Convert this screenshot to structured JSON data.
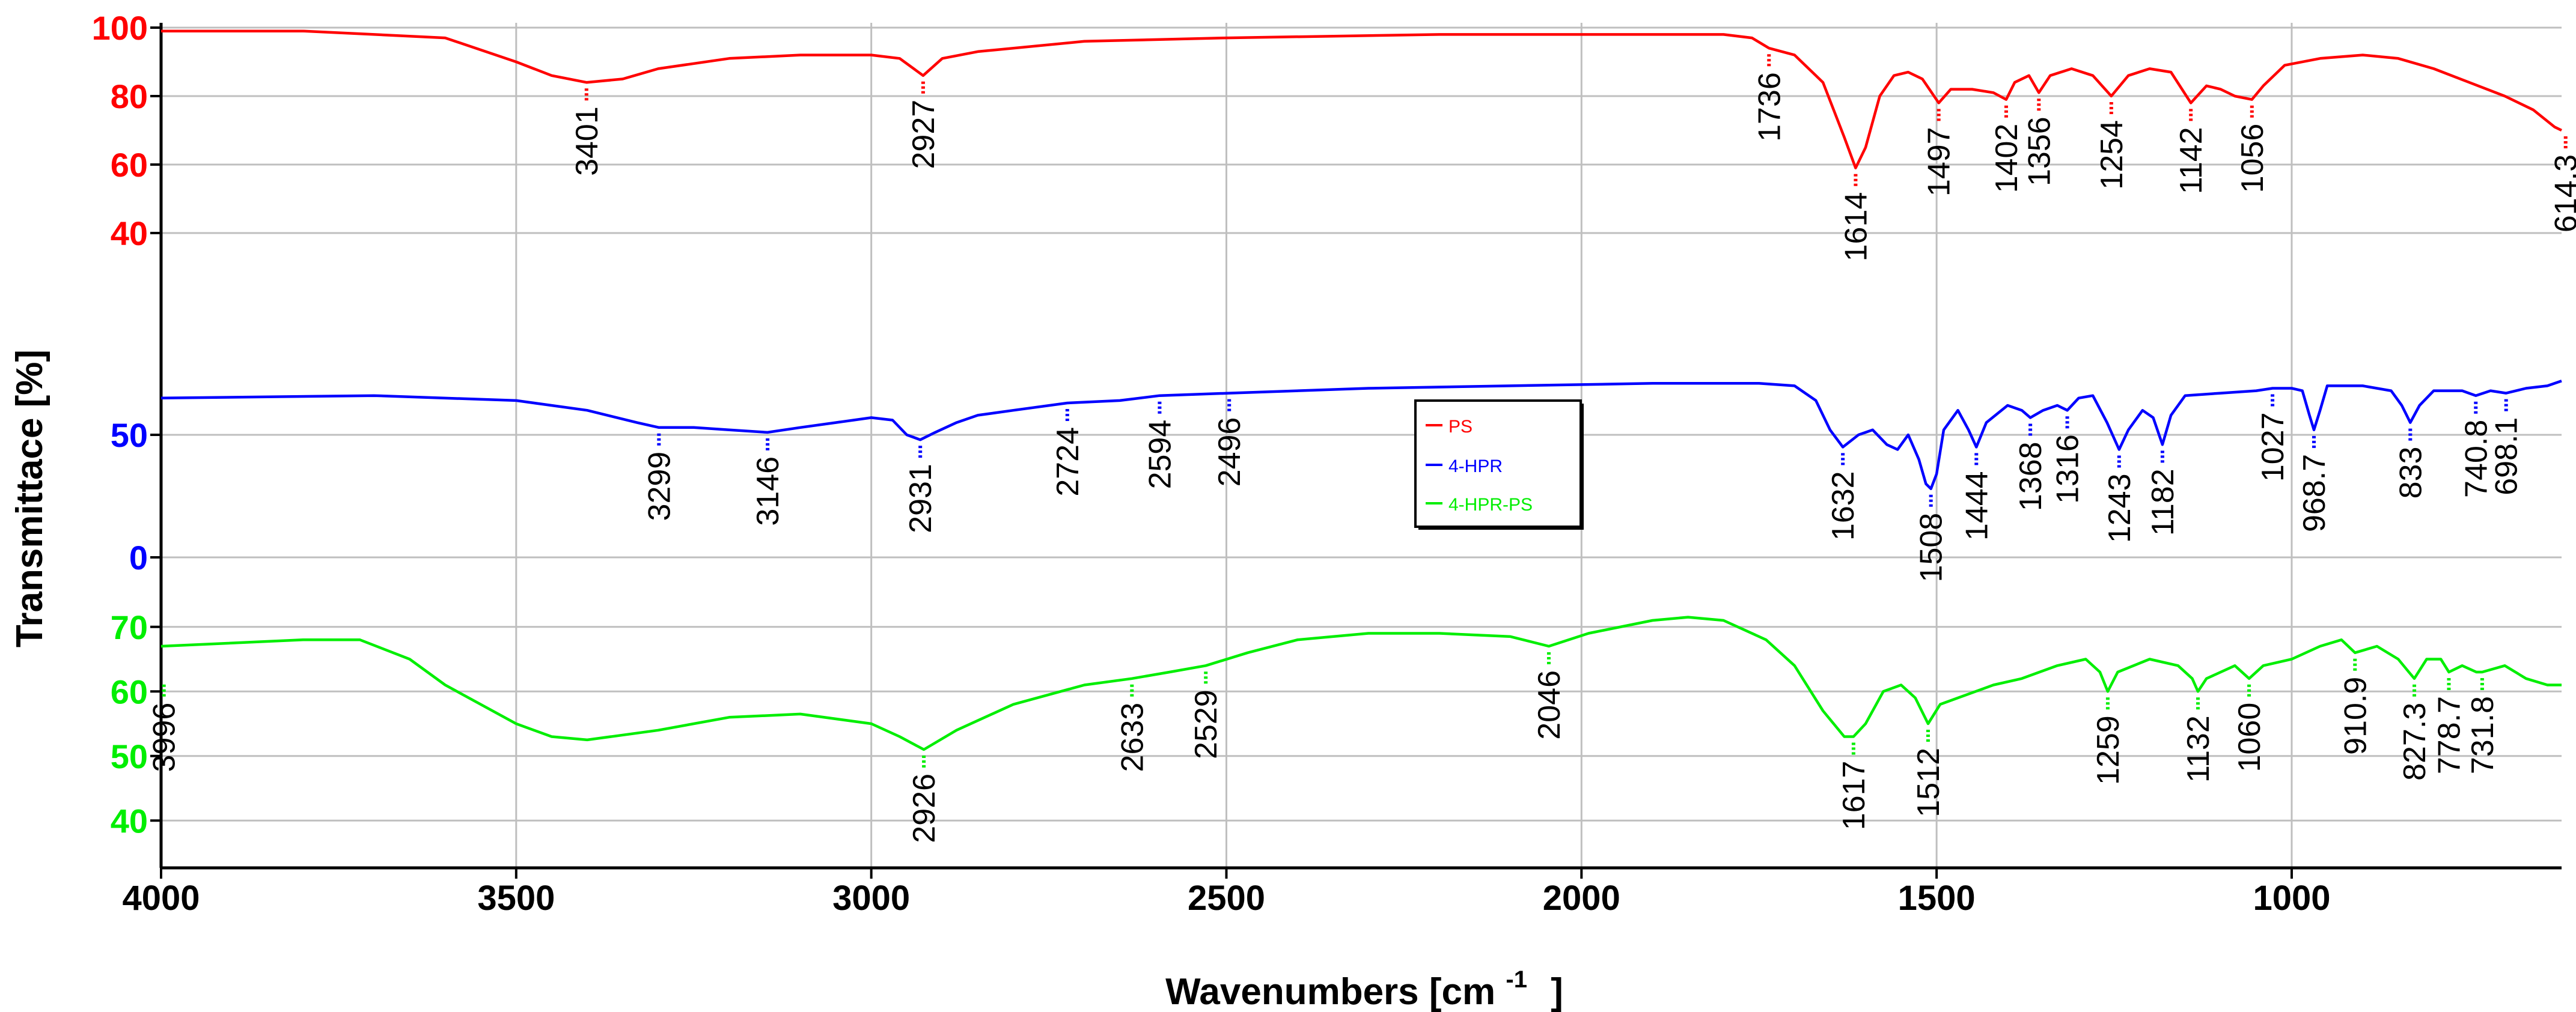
{
  "chart_data": {
    "type": "line",
    "xlabel": "Wavenumbers [cm",
    "xlabel_sup": "-1",
    "xlabel_end": "]",
    "ylabel": "Transmittace [%]",
    "x_reversed": true,
    "xlim": [
      4000,
      620
    ],
    "x_ticks": [
      "4000",
      "3500",
      "3000",
      "2500",
      "2000",
      "1500",
      "1000"
    ],
    "grid": true,
    "legend_position": "center",
    "legend": [
      "PS",
      "4-HPR",
      "4-HPR-PS"
    ],
    "panels": [
      {
        "name": "PS",
        "color": "#ff0000",
        "ylim": [
          30,
          100
        ],
        "y_ticks": [
          "100",
          "80",
          "60",
          "40"
        ],
        "peaks": [
          {
            "x": 3401,
            "label": "3401",
            "y": 84
          },
          {
            "x": 2927,
            "label": "2927",
            "y": 86
          },
          {
            "x": 1736,
            "label": "1736",
            "y": 94
          },
          {
            "x": 1614,
            "label": "1614",
            "y": 59
          },
          {
            "x": 1497,
            "label": "1497",
            "y": 78
          },
          {
            "x": 1402,
            "label": "1402",
            "y": 79
          },
          {
            "x": 1356,
            "label": "1356",
            "y": 81
          },
          {
            "x": 1254,
            "label": "1254",
            "y": 80
          },
          {
            "x": 1142,
            "label": "1142",
            "y": 78
          },
          {
            "x": 1056,
            "label": "1056",
            "y": 79
          },
          {
            "x": 614.3,
            "label": "614.3",
            "y": 70
          }
        ],
        "series": [
          [
            4000,
            99
          ],
          [
            3800,
            99
          ],
          [
            3600,
            97
          ],
          [
            3500,
            90
          ],
          [
            3450,
            86
          ],
          [
            3401,
            84
          ],
          [
            3350,
            85
          ],
          [
            3300,
            88
          ],
          [
            3200,
            91
          ],
          [
            3100,
            92
          ],
          [
            3000,
            92
          ],
          [
            2960,
            91
          ],
          [
            2927,
            86
          ],
          [
            2900,
            91
          ],
          [
            2850,
            93
          ],
          [
            2700,
            96
          ],
          [
            2500,
            97
          ],
          [
            2200,
            98
          ],
          [
            2000,
            98
          ],
          [
            1800,
            98
          ],
          [
            1760,
            97
          ],
          [
            1736,
            94
          ],
          [
            1700,
            92
          ],
          [
            1660,
            84
          ],
          [
            1630,
            68
          ],
          [
            1614,
            59
          ],
          [
            1600,
            65
          ],
          [
            1580,
            80
          ],
          [
            1560,
            86
          ],
          [
            1540,
            87
          ],
          [
            1520,
            85
          ],
          [
            1497,
            78
          ],
          [
            1480,
            82
          ],
          [
            1450,
            82
          ],
          [
            1420,
            81
          ],
          [
            1402,
            79
          ],
          [
            1390,
            84
          ],
          [
            1370,
            86
          ],
          [
            1356,
            81
          ],
          [
            1340,
            86
          ],
          [
            1310,
            88
          ],
          [
            1280,
            86
          ],
          [
            1254,
            80
          ],
          [
            1230,
            86
          ],
          [
            1200,
            88
          ],
          [
            1170,
            87
          ],
          [
            1142,
            78
          ],
          [
            1120,
            83
          ],
          [
            1100,
            82
          ],
          [
            1080,
            80
          ],
          [
            1056,
            79
          ],
          [
            1040,
            83
          ],
          [
            1010,
            89
          ],
          [
            960,
            91
          ],
          [
            900,
            92
          ],
          [
            850,
            91
          ],
          [
            800,
            88
          ],
          [
            750,
            84
          ],
          [
            700,
            80
          ],
          [
            660,
            76
          ],
          [
            630,
            71
          ],
          [
            620,
            70
          ]
        ]
      },
      {
        "name": "4-HPR",
        "color": "#0000ff",
        "ylim": [
          0,
          100
        ],
        "y_ticks": [
          "50",
          "0"
        ],
        "peaks": [
          {
            "x": 3299,
            "label": "3299",
            "y": 53
          },
          {
            "x": 3146,
            "label": "3146",
            "y": 51
          },
          {
            "x": 2931,
            "label": "2931",
            "y": 48
          },
          {
            "x": 2724,
            "label": "2724",
            "y": 63
          },
          {
            "x": 2594,
            "label": "2594",
            "y": 66
          },
          {
            "x": 2496,
            "label": "2496",
            "y": 67
          },
          {
            "x": 1632,
            "label": "1632",
            "y": 45
          },
          {
            "x": 1508,
            "label": "1508",
            "y": 28
          },
          {
            "x": 1444,
            "label": "1444",
            "y": 45
          },
          {
            "x": 1368,
            "label": "1368",
            "y": 57
          },
          {
            "x": 1316,
            "label": "1316",
            "y": 60
          },
          {
            "x": 1243,
            "label": "1243",
            "y": 44
          },
          {
            "x": 1182,
            "label": "1182",
            "y": 46
          },
          {
            "x": 1027,
            "label": "1027",
            "y": 69
          },
          {
            "x": 968.7,
            "label": "968.7",
            "y": 52
          },
          {
            "x": 833,
            "label": "833",
            "y": 55
          },
          {
            "x": 740.8,
            "label": "740.8",
            "y": 66
          },
          {
            "x": 698.1,
            "label": "698.1",
            "y": 67
          }
        ],
        "series": [
          [
            4000,
            65
          ],
          [
            3700,
            66
          ],
          [
            3500,
            64
          ],
          [
            3400,
            60
          ],
          [
            3330,
            55
          ],
          [
            3299,
            53
          ],
          [
            3250,
            53
          ],
          [
            3200,
            52
          ],
          [
            3146,
            51
          ],
          [
            3100,
            53
          ],
          [
            3050,
            55
          ],
          [
            3000,
            57
          ],
          [
            2970,
            56
          ],
          [
            2950,
            50
          ],
          [
            2931,
            48
          ],
          [
            2910,
            51
          ],
          [
            2880,
            55
          ],
          [
            2850,
            58
          ],
          [
            2800,
            60
          ],
          [
            2724,
            63
          ],
          [
            2650,
            64
          ],
          [
            2594,
            66
          ],
          [
            2496,
            67
          ],
          [
            2300,
            69
          ],
          [
            2100,
            70
          ],
          [
            1900,
            71
          ],
          [
            1750,
            71
          ],
          [
            1700,
            70
          ],
          [
            1670,
            64
          ],
          [
            1650,
            52
          ],
          [
            1632,
            45
          ],
          [
            1610,
            50
          ],
          [
            1590,
            52
          ],
          [
            1570,
            46
          ],
          [
            1555,
            44
          ],
          [
            1540,
            50
          ],
          [
            1525,
            40
          ],
          [
            1515,
            30
          ],
          [
            1508,
            28
          ],
          [
            1500,
            34
          ],
          [
            1490,
            52
          ],
          [
            1470,
            60
          ],
          [
            1455,
            52
          ],
          [
            1444,
            45
          ],
          [
            1430,
            55
          ],
          [
            1400,
            62
          ],
          [
            1380,
            60
          ],
          [
            1368,
            57
          ],
          [
            1350,
            60
          ],
          [
            1330,
            62
          ],
          [
            1316,
            60
          ],
          [
            1300,
            65
          ],
          [
            1280,
            66
          ],
          [
            1260,
            55
          ],
          [
            1243,
            44
          ],
          [
            1230,
            52
          ],
          [
            1210,
            60
          ],
          [
            1195,
            57
          ],
          [
            1182,
            46
          ],
          [
            1170,
            58
          ],
          [
            1150,
            66
          ],
          [
            1100,
            67
          ],
          [
            1050,
            68
          ],
          [
            1027,
            69
          ],
          [
            1000,
            69
          ],
          [
            985,
            68
          ],
          [
            975,
            58
          ],
          [
            968.7,
            52
          ],
          [
            960,
            60
          ],
          [
            950,
            70
          ],
          [
            900,
            70
          ],
          [
            860,
            68
          ],
          [
            845,
            62
          ],
          [
            833,
            55
          ],
          [
            820,
            62
          ],
          [
            800,
            68
          ],
          [
            760,
            68
          ],
          [
            740.8,
            66
          ],
          [
            720,
            68
          ],
          [
            698.1,
            67
          ],
          [
            670,
            69
          ],
          [
            640,
            70
          ],
          [
            620,
            72
          ]
        ]
      },
      {
        "name": "4-HPR-PS",
        "color": "#00ee00",
        "ylim": [
          35,
          75
        ],
        "y_ticks": [
          "70",
          "60",
          "50",
          "40"
        ],
        "peaks": [
          {
            "x": 3996,
            "label": "3996",
            "y": 62
          },
          {
            "x": 2926,
            "label": "2926",
            "y": 51
          },
          {
            "x": 2633,
            "label": "2633",
            "y": 62
          },
          {
            "x": 2529,
            "label": "2529",
            "y": 64
          },
          {
            "x": 2046,
            "label": "2046",
            "y": 67
          },
          {
            "x": 1617,
            "label": "1617",
            "y": 53
          },
          {
            "x": 1512,
            "label": "1512",
            "y": 55
          },
          {
            "x": 1259,
            "label": "1259",
            "y": 60
          },
          {
            "x": 1132,
            "label": "1132",
            "y": 60
          },
          {
            "x": 1060,
            "label": "1060",
            "y": 62
          },
          {
            "x": 910.9,
            "label": "910.9",
            "y": 66
          },
          {
            "x": 827.3,
            "label": "827.3",
            "y": 62
          },
          {
            "x": 778.7,
            "label": "778.7",
            "y": 63
          },
          {
            "x": 731.8,
            "label": "731.8",
            "y": 63
          }
        ],
        "series": [
          [
            4000,
            67
          ],
          [
            3800,
            68
          ],
          [
            3720,
            68
          ],
          [
            3650,
            65
          ],
          [
            3600,
            61
          ],
          [
            3500,
            55
          ],
          [
            3450,
            53
          ],
          [
            3400,
            52.5
          ],
          [
            3300,
            54
          ],
          [
            3200,
            56
          ],
          [
            3100,
            56.5
          ],
          [
            3000,
            55
          ],
          [
            2960,
            53
          ],
          [
            2926,
            51
          ],
          [
            2880,
            54
          ],
          [
            2800,
            58
          ],
          [
            2700,
            61
          ],
          [
            2633,
            62
          ],
          [
            2580,
            63
          ],
          [
            2529,
            64
          ],
          [
            2470,
            66
          ],
          [
            2400,
            68
          ],
          [
            2300,
            69
          ],
          [
            2200,
            69
          ],
          [
            2100,
            68.5
          ],
          [
            2046,
            67
          ],
          [
            1990,
            69
          ],
          [
            1900,
            71
          ],
          [
            1850,
            71.5
          ],
          [
            1800,
            71
          ],
          [
            1740,
            68
          ],
          [
            1700,
            64
          ],
          [
            1660,
            57
          ],
          [
            1630,
            53
          ],
          [
            1617,
            53
          ],
          [
            1600,
            55
          ],
          [
            1575,
            60
          ],
          [
            1550,
            61
          ],
          [
            1530,
            59
          ],
          [
            1512,
            55
          ],
          [
            1495,
            58
          ],
          [
            1470,
            59
          ],
          [
            1420,
            61
          ],
          [
            1380,
            62
          ],
          [
            1330,
            64
          ],
          [
            1290,
            65
          ],
          [
            1270,
            63
          ],
          [
            1259,
            60
          ],
          [
            1245,
            63
          ],
          [
            1200,
            65
          ],
          [
            1160,
            64
          ],
          [
            1140,
            62
          ],
          [
            1132,
            60
          ],
          [
            1120,
            62
          ],
          [
            1080,
            64
          ],
          [
            1060,
            62
          ],
          [
            1040,
            64
          ],
          [
            1000,
            65
          ],
          [
            960,
            67
          ],
          [
            930,
            68
          ],
          [
            910.9,
            66
          ],
          [
            880,
            67
          ],
          [
            850,
            65
          ],
          [
            835,
            63
          ],
          [
            827.3,
            62
          ],
          [
            810,
            65
          ],
          [
            790,
            65
          ],
          [
            778.7,
            63
          ],
          [
            760,
            64
          ],
          [
            740,
            63
          ],
          [
            731.8,
            63
          ],
          [
            700,
            64
          ],
          [
            670,
            62
          ],
          [
            640,
            61
          ],
          [
            620,
            61
          ]
        ]
      }
    ]
  }
}
